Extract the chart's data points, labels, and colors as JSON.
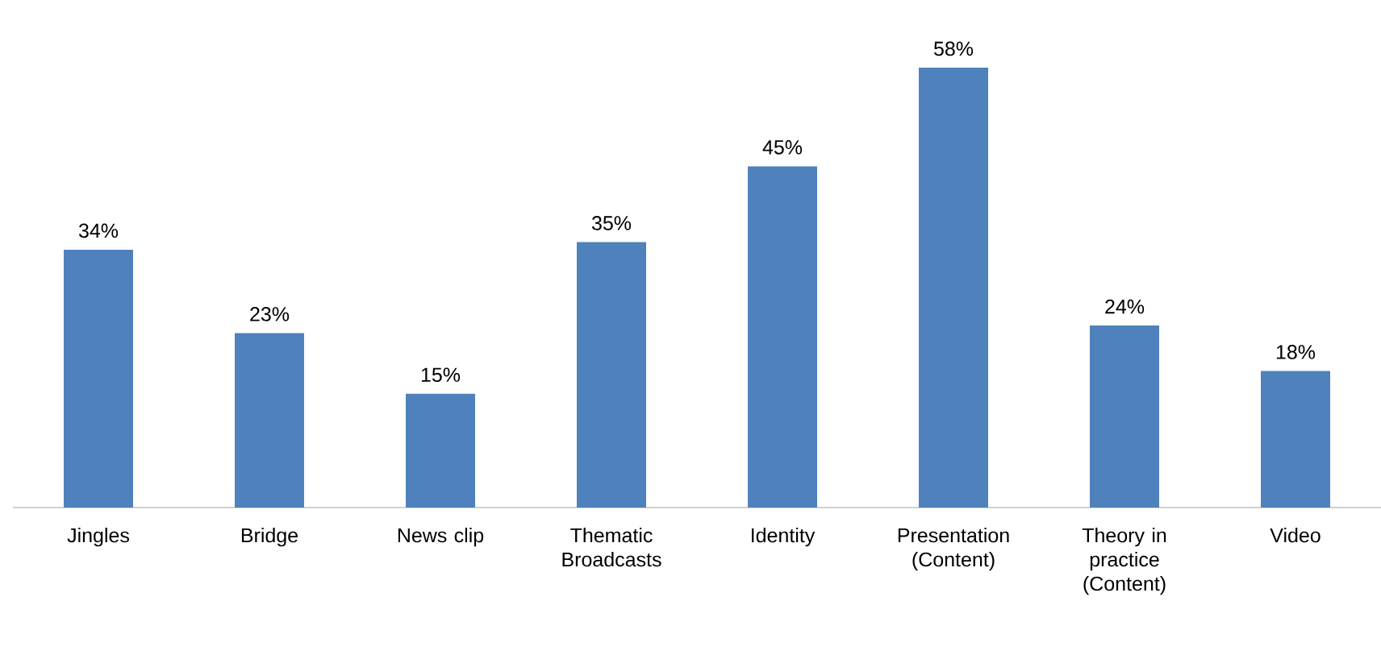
{
  "chart_data": {
    "type": "bar",
    "categories": [
      "Jingles",
      "Bridge",
      "News clip",
      "Thematic Broadcasts",
      "Identity",
      "Presentation (Content)",
      "Theory in practice (Content)",
      "Video"
    ],
    "values": [
      34,
      23,
      15,
      35,
      45,
      58,
      24,
      18
    ],
    "value_labels": [
      "34%",
      "23%",
      "15%",
      "35%",
      "45%",
      "58%",
      "24%",
      "18%"
    ],
    "color": "#4f81bd"
  }
}
